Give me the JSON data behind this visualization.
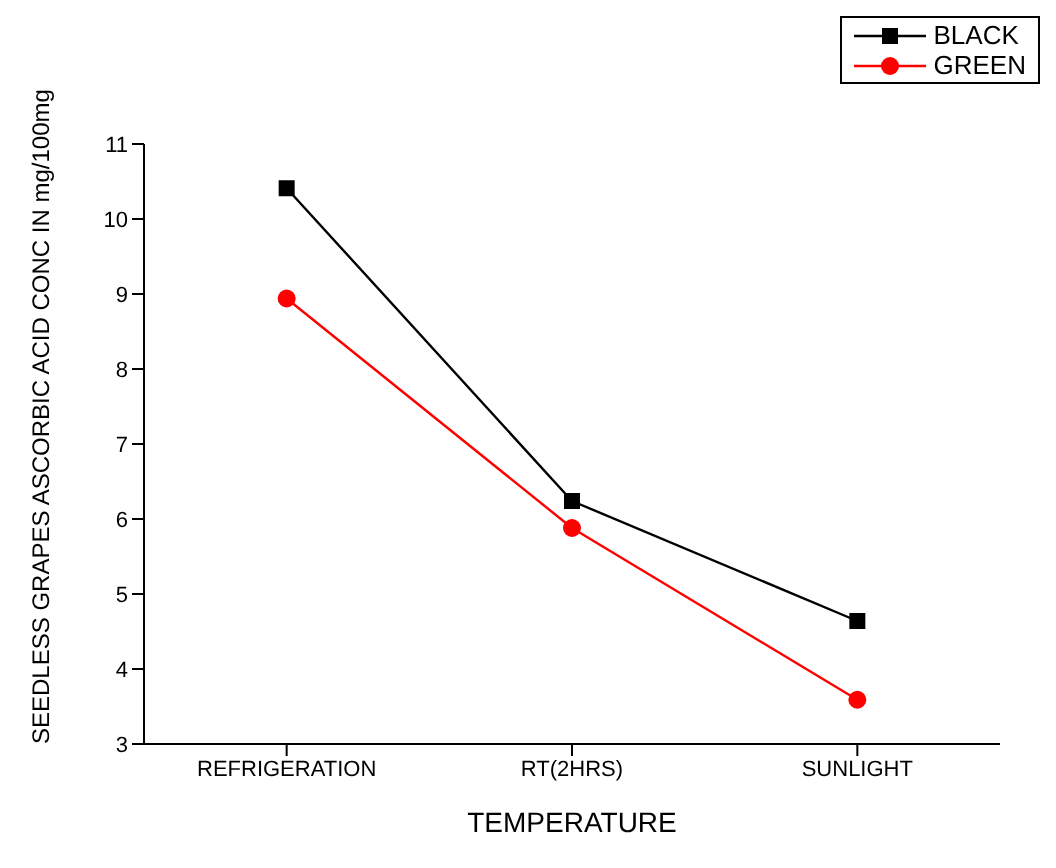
{
  "chart_data": {
    "type": "line",
    "xlabel": "TEMPERATURE",
    "ylabel": "SEEDLESS GRAPES ASCORBIC ACID CONC IN mg/100mg",
    "categories": [
      "REFRIGERATION",
      "RT(2HRS)",
      "SUNLIGHT"
    ],
    "series": [
      {
        "name": "BLACK",
        "color": "#000000",
        "values": [
          10.41,
          6.24,
          4.64
        ],
        "marker": "square"
      },
      {
        "name": "GREEN",
        "color": "#ff0000",
        "values": [
          8.94,
          5.88,
          3.59
        ],
        "marker": "circle"
      }
    ],
    "ylim": [
      3,
      11
    ],
    "yticks": [
      3,
      4,
      5,
      6,
      7,
      8,
      9,
      10,
      11
    ],
    "grid": false,
    "legend": "top right"
  }
}
